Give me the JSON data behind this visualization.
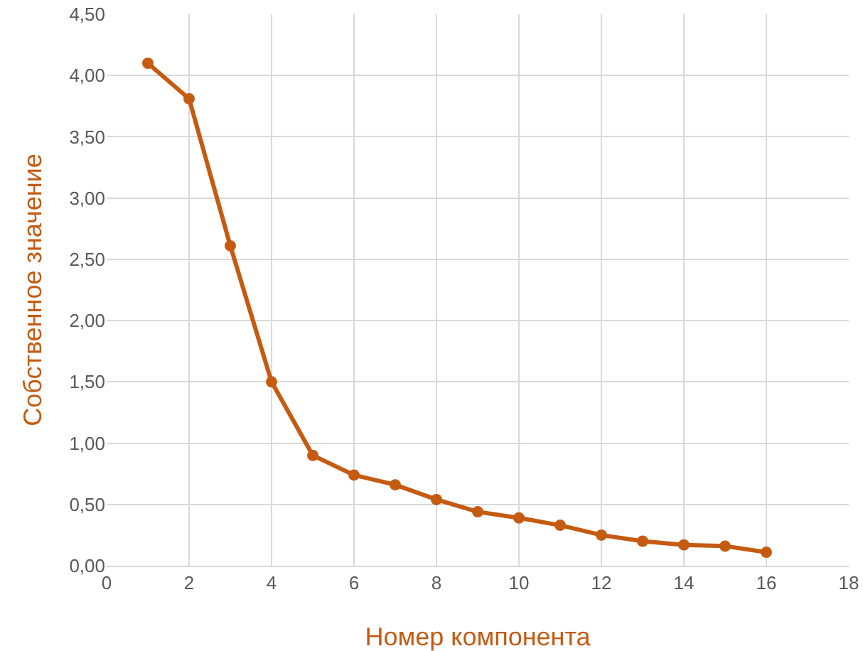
{
  "chart_data": {
    "type": "line",
    "xlabel": "Номер компонента",
    "ylabel": "Собственное значение",
    "x": [
      1,
      2,
      3,
      4,
      5,
      6,
      7,
      8,
      9,
      10,
      11,
      12,
      13,
      14,
      15,
      16
    ],
    "series": [
      {
        "color": "#c55a11",
        "values": [
          4.1,
          3.81,
          2.61,
          1.5,
          0.9,
          0.74,
          0.66,
          0.54,
          0.44,
          0.39,
          0.33,
          0.25,
          0.2,
          0.17,
          0.16,
          0.11
        ]
      }
    ],
    "xlim": [
      0,
      18
    ],
    "xticks": [
      0,
      2,
      4,
      6,
      8,
      10,
      12,
      14,
      16,
      18
    ],
    "ylim": [
      0,
      4.5
    ],
    "yticks": [
      {
        "value": 0,
        "label": "0,00"
      },
      {
        "value": 0.5,
        "label": "0,50"
      },
      {
        "value": 1,
        "label": "1,00"
      },
      {
        "value": 1.5,
        "label": "1,50"
      },
      {
        "value": 2,
        "label": "2,00"
      },
      {
        "value": 2.5,
        "label": "2,50"
      },
      {
        "value": 3,
        "label": "3,00"
      },
      {
        "value": 3.5,
        "label": "3,50"
      },
      {
        "value": 4,
        "label": "4,00"
      },
      {
        "value": 4.5,
        "label": "4,50"
      }
    ],
    "grid": true,
    "marker": "circle",
    "line_style": "solid"
  }
}
